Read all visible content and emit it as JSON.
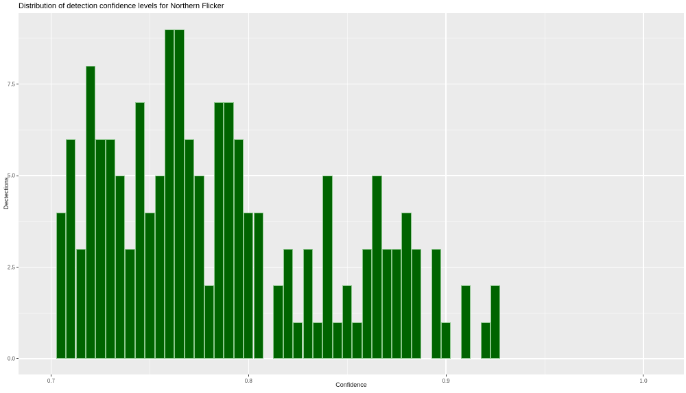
{
  "title": "Distribution of detection confidence levels for Northern Flicker",
  "chart_data": {
    "type": "bar",
    "subtype": "histogram",
    "title": "Distribution of detection confidence levels for Northern Flicker",
    "xlabel": "Confidence",
    "ylabel": "Dectections",
    "bin_width": 0.005,
    "x": [
      0.705,
      0.71,
      0.715,
      0.72,
      0.725,
      0.73,
      0.735,
      0.74,
      0.745,
      0.75,
      0.755,
      0.76,
      0.765,
      0.77,
      0.775,
      0.78,
      0.785,
      0.79,
      0.795,
      0.8,
      0.805,
      0.81,
      0.815,
      0.82,
      0.825,
      0.83,
      0.835,
      0.84,
      0.845,
      0.85,
      0.855,
      0.86,
      0.865,
      0.87,
      0.875,
      0.88,
      0.885,
      0.89,
      0.895,
      0.9,
      0.905,
      0.91,
      0.915,
      0.92,
      0.925
    ],
    "values": [
      4,
      6,
      3,
      8,
      6,
      6,
      5,
      3,
      7,
      4,
      5,
      9,
      9,
      6,
      5,
      2,
      7,
      7,
      6,
      4,
      4,
      0,
      2,
      3,
      1,
      3,
      1,
      5,
      1,
      2,
      1,
      3,
      5,
      3,
      3,
      4,
      3,
      0,
      3,
      1,
      0,
      2,
      0,
      1,
      2
    ],
    "xlim": [
      0.6835,
      1.0205
    ],
    "ylim": [
      -0.431,
      9.443
    ],
    "x_ticks": [
      0.7,
      0.8,
      0.9,
      1.0
    ],
    "x_tick_labels": [
      "0.7",
      "0.8",
      "0.9",
      "1.0"
    ],
    "y_ticks": [
      0.0,
      2.5,
      5.0,
      7.5
    ],
    "y_tick_labels": [
      "0.0",
      "2.5",
      "5.0",
      "7.5"
    ],
    "x_minor_ticks": [
      0.75,
      0.85,
      0.95
    ],
    "y_minor_ticks": [
      1.25,
      3.75,
      6.25,
      8.75
    ],
    "grid": true,
    "legend": false,
    "colors": {
      "bar_fill": "#006400",
      "bar_border": "#8cc68c",
      "panel_background": "#ebebeb",
      "grid_major": "#ffffff",
      "tick_mark": "#333333",
      "tick_label": "#4d4d4d",
      "title_text": "#000000"
    }
  }
}
